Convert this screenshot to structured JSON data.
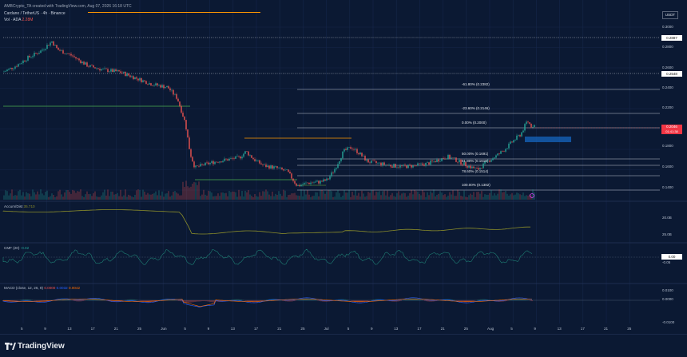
{
  "header": {
    "attribution": "AMBCrypto_TA created with TradingView.com, Aug 07, 2026 16:18 UTC",
    "symbol_line": "Cardano / TetherUS · 4h · Binance",
    "volume_line": "Vol · ADA",
    "volume_value": "2.28M",
    "currency": "USDT"
  },
  "price_axis": [
    "0.3000",
    "0.2800",
    "0.2600",
    "0.2400",
    "0.2200",
    "0.2000",
    "0.1800",
    "0.1600",
    "0.1400"
  ],
  "price_tags": {
    "upper_level": "0.2887",
    "mid_level": "0.2548",
    "current_price": "0.2046",
    "countdown": "01:41:38"
  },
  "fib_levels": [
    {
      "label": "-61.80% (0.2382)"
    },
    {
      "label": "-23.60% (0.2146)"
    },
    {
      "label": "0.00% (0.2000)"
    },
    {
      "label": "50.00% (0.1691)"
    },
    {
      "label": "61.80% (0.1618)"
    },
    {
      "label": "78.60% (0.1514)"
    },
    {
      "label": "100.00% (0.1382)"
    }
  ],
  "panes": {
    "accum": {
      "title": "Accum/Dist",
      "value": "35.710",
      "axis": [
        "20.0B",
        "25.0B"
      ]
    },
    "cmf": {
      "title": "CMF (20)",
      "value": "-0.02",
      "axis": [
        "0.00",
        "-0.05"
      ]
    },
    "macd": {
      "title": "MACD (close, 12, 26, 9)",
      "value1": "0.0000",
      "value2": "0.0032",
      "value3": "0.0042",
      "axis": [
        "0.0100",
        "0.0000",
        "-0.0100"
      ]
    }
  },
  "time_axis": [
    "5",
    "9",
    "13",
    "17",
    "21",
    "25",
    "Jun",
    "5",
    "9",
    "13",
    "17",
    "21",
    "25",
    "Jul",
    "5",
    "9",
    "13",
    "17",
    "21",
    "25",
    "Aug",
    "5",
    "9",
    "13",
    "17",
    "21",
    "25"
  ],
  "footer": {
    "brand": "TradingView"
  },
  "colors": {
    "background": "#0b1933",
    "up_candle": "#26a69a",
    "down_candle": "#ef5350",
    "fib_line": "#e2e6ec",
    "orange_line": "#ff9800",
    "green_line": "#4caf50",
    "blue_box": "#1565c0",
    "accum_line": "#8d8f2a",
    "macd_line": "#2962ff",
    "signal_line": "#ff6d00"
  }
}
